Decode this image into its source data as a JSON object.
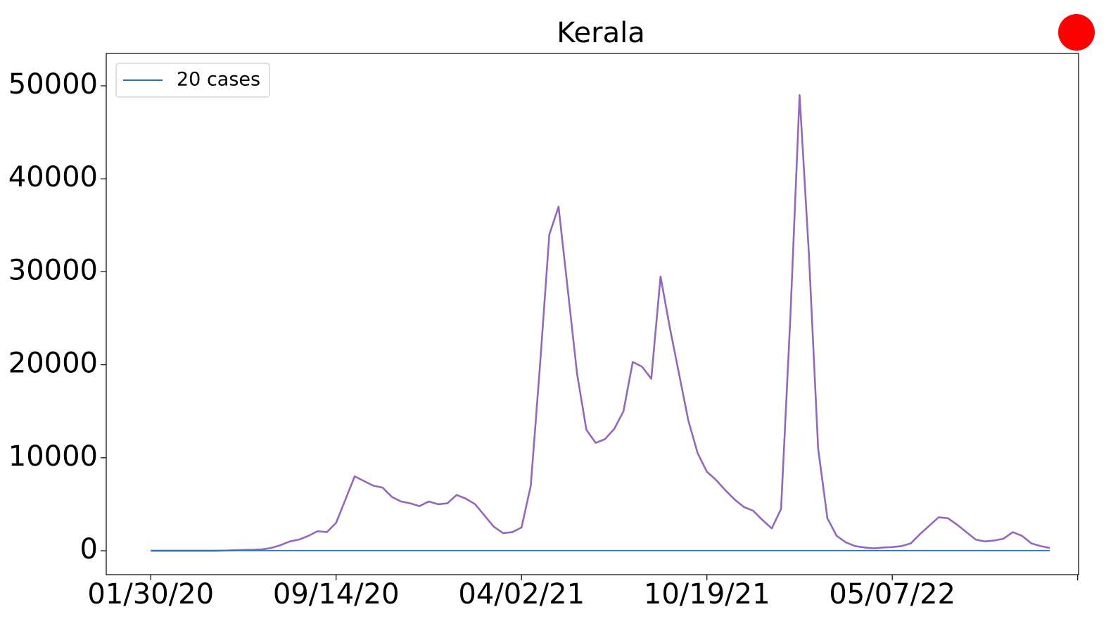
{
  "chart_data": {
    "type": "line",
    "title": "Kerala",
    "categories": [
      "01/30/20",
      null,
      null,
      null,
      null,
      null,
      null,
      null,
      null,
      null,
      null,
      null,
      null,
      null,
      null,
      null,
      null,
      null,
      null,
      null,
      "09/14/20",
      null,
      null,
      null,
      null,
      null,
      null,
      null,
      null,
      null,
      null,
      null,
      null,
      null,
      null,
      null,
      null,
      null,
      null,
      null,
      "04/02/21",
      null,
      null,
      null,
      null,
      null,
      null,
      null,
      null,
      null,
      null,
      null,
      null,
      null,
      null,
      null,
      null,
      null,
      null,
      null,
      "10/19/21",
      null,
      null,
      null,
      null,
      null,
      null,
      null,
      null,
      null,
      null,
      null,
      null,
      null,
      null,
      null,
      null,
      null,
      null,
      null,
      "05/07/22",
      null,
      null,
      null,
      null,
      null,
      null,
      null,
      null,
      null,
      null,
      null,
      null,
      null,
      null,
      null,
      null,
      null
    ],
    "series": [
      {
        "color": "#9467bd",
        "values": [
          0,
          0,
          0,
          0,
          0,
          0,
          0,
          0,
          20,
          50,
          80,
          100,
          150,
          300,
          600,
          1000,
          1200,
          1600,
          2100,
          2000,
          3000,
          5500,
          8000,
          7500,
          7000,
          6800,
          5800,
          5300,
          5100,
          4800,
          5300,
          5000,
          5100,
          6000,
          5600,
          5000,
          3800,
          2600,
          1900,
          2000,
          2500,
          7000,
          20000,
          34000,
          37000,
          28000,
          19000,
          13000,
          11600,
          12000,
          13100,
          15000,
          20300,
          19800,
          18500,
          29500,
          24000,
          19000,
          14000,
          10500,
          8500,
          7600,
          6500,
          5500,
          4700,
          4300,
          3300,
          2400,
          4500,
          25000,
          49000,
          32000,
          11000,
          3500,
          1600,
          900,
          500,
          350,
          250,
          350,
          400,
          500,
          800,
          1800,
          2700,
          3600,
          3500,
          2800,
          2000,
          1200,
          1000,
          1100,
          1300,
          2000,
          1600,
          800,
          500,
          300
        ]
      },
      {
        "name": "20 cases",
        "color": "#1f77b4",
        "values": [
          20,
          20,
          20,
          20,
          20,
          20,
          20,
          20,
          20,
          20,
          20,
          20,
          20,
          20,
          20,
          20,
          20,
          20,
          20,
          20,
          20,
          20,
          20,
          20,
          20,
          20,
          20,
          20,
          20,
          20,
          20,
          20,
          20,
          20,
          20,
          20,
          20,
          20,
          20,
          20,
          20,
          20,
          20,
          20,
          20,
          20,
          20,
          20,
          20,
          20,
          20,
          20,
          20,
          20,
          20,
          20,
          20,
          20,
          20,
          20,
          20,
          20,
          20,
          20,
          20,
          20,
          20,
          20,
          20,
          20,
          20,
          20,
          20,
          20,
          20,
          20,
          20,
          20,
          20,
          20,
          20,
          20,
          20,
          20,
          20,
          20,
          20,
          20,
          20,
          20,
          20,
          20,
          20,
          20,
          20,
          20,
          20,
          20
        ]
      }
    ],
    "xlim": [
      -4.8,
      100.1
    ],
    "xticks": [
      0,
      20,
      40,
      60,
      80,
      100
    ],
    "ylim": [
      -2570,
      53480
    ],
    "yticks": [
      0,
      10000,
      20000,
      30000,
      40000,
      50000
    ],
    "legend": "upper left"
  }
}
